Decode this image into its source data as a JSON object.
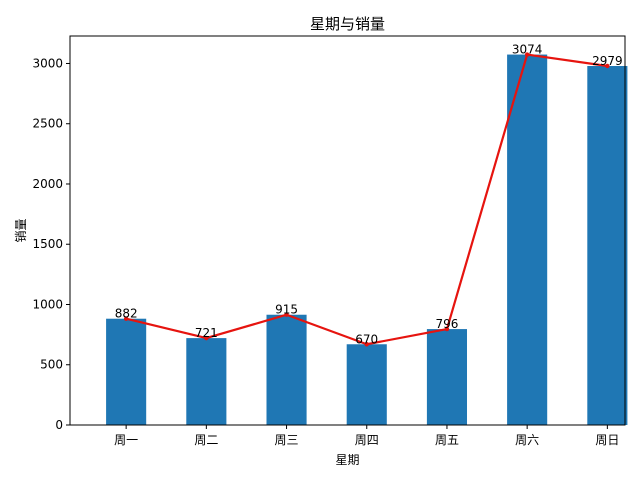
{
  "chart_data": {
    "type": "bar",
    "title": "星期与销量",
    "xlabel": "星期",
    "ylabel": "销量",
    "categories": [
      "周一",
      "周二",
      "周三",
      "周四",
      "周五",
      "周六",
      "周日"
    ],
    "values": [
      882,
      721,
      915,
      670,
      796,
      3074,
      2979
    ],
    "overlay_line": {
      "type": "line",
      "values": [
        882,
        721,
        915,
        670,
        796,
        3074,
        2979
      ]
    },
    "ylim": [
      0,
      3228
    ],
    "yticks": [
      0,
      500,
      1000,
      1500,
      2000,
      2500,
      3000
    ],
    "grid": false,
    "legend": "none",
    "colors": {
      "bar": "#1f77b4",
      "line": "#e6140f",
      "axis": "#000000"
    }
  }
}
